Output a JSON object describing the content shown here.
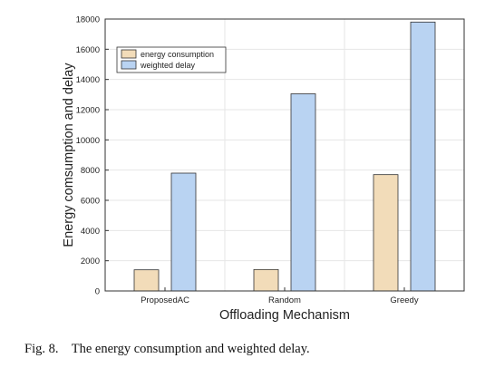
{
  "chart_data": {
    "type": "bar",
    "title": "",
    "xlabel": "Offloading Mechanism",
    "ylabel": "Energy comsumption  and delay",
    "categories": [
      "ProposedAC",
      "Random",
      "Greedy"
    ],
    "series": [
      {
        "name": "energy consumption",
        "values": [
          1400,
          1420,
          7700
        ],
        "color": "#f2dcb9"
      },
      {
        "name": "weighted delay",
        "values": [
          7800,
          13050,
          17800
        ],
        "color": "#b9d3f2"
      }
    ],
    "ylim": [
      0,
      18000
    ],
    "yticks": [
      "0",
      "2000",
      "4000",
      "6000",
      "8000",
      "10000",
      "12000",
      "14000",
      "16000",
      "18000"
    ],
    "grid": true,
    "legend_position": "top-left"
  },
  "caption": {
    "label": "Fig. 8.",
    "text": "The energy consumption and weighted delay."
  }
}
